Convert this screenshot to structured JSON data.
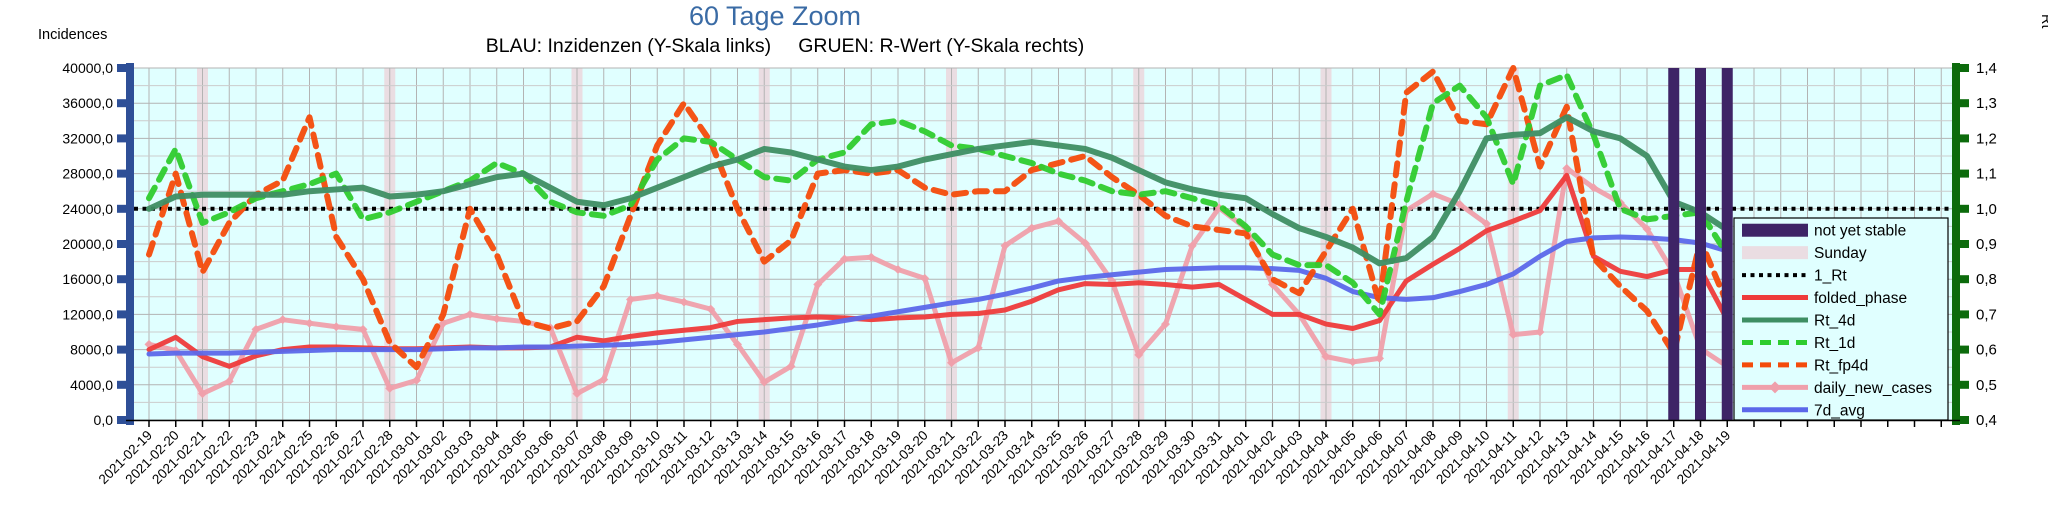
{
  "title": "60 Tage Zoom",
  "subtitle": "BLAU: Inzidenzen (Y-Skala links)     GRUEN: R-Wert (Y-Skala rechts)",
  "left_axis": {
    "label": "Incidences",
    "min": 0,
    "max": 40000,
    "major_step": 4000,
    "minor_step": 2000,
    "tick_labels": [
      "40000,0",
      "36000,0",
      "32000,0",
      "28000,0",
      "24000,0",
      "20000,0",
      "16000,0",
      "12000,0",
      "8000,0",
      "4000,0",
      "0,0"
    ],
    "color": "#2e4f97"
  },
  "right_axis": {
    "label": "Rt",
    "min": 0.4,
    "max": 1.4,
    "major_step": 0.1,
    "tick_labels": [
      "1,4",
      "1,3",
      "1,2",
      "1,1",
      "1,0",
      "0,9",
      "0,8",
      "0,7",
      "0,6",
      "0,5",
      "0,4"
    ],
    "color": "#0c6b0c"
  },
  "colors": {
    "title": "#3a6ba5",
    "subtitle": "#000000",
    "plot_bg": "#e0ffff",
    "grid_major": "#b3b3b3",
    "grid_minor": "#cccccc",
    "axis_line": "#000000",
    "sunday_band": "#eadde2",
    "stable_band": "#3e2466",
    "rt1": "#000000",
    "folded_phase": "#ee3b3b",
    "rt_4d": "#3e8e63",
    "rt_1d": "#2ecc2e",
    "rt_fp4d": "#f44b0b",
    "daily_new_cases": "#efa0ab",
    "7d_avg": "#5b68ea"
  },
  "legend": {
    "position": "right-bottom",
    "items": [
      {
        "key": "stable",
        "label": "not yet stable",
        "swatch": "band",
        "color": "#3e2466"
      },
      {
        "key": "sunday",
        "label": "Sunday",
        "swatch": "band",
        "color": "#eadde2"
      },
      {
        "key": "rt1",
        "label": "1_Rt",
        "swatch": "dotted",
        "color": "#000000"
      },
      {
        "key": "folded_phase",
        "label": "folded_phase",
        "swatch": "solid",
        "color": "#ee3b3b"
      },
      {
        "key": "rt_4d",
        "label": "Rt_4d",
        "swatch": "solid",
        "color": "#3e8e63"
      },
      {
        "key": "rt_1d",
        "label": "Rt_1d",
        "swatch": "dashed",
        "color": "#2ecc2e"
      },
      {
        "key": "rt_fp4d",
        "label": "Rt_fp4d",
        "swatch": "dashed",
        "color": "#f44b0b"
      },
      {
        "key": "daily_new_cases",
        "label": "daily_new_cases",
        "swatch": "solid-diamond",
        "color": "#efa0ab"
      },
      {
        "key": "7d_avg",
        "label": "7d_avg",
        "swatch": "solid",
        "color": "#5b68ea"
      }
    ]
  },
  "chart_data": {
    "type": "line",
    "grid": true,
    "x": [
      "2021-02-19",
      "2021-02-20",
      "2021-02-21",
      "2021-02-22",
      "2021-02-23",
      "2021-02-24",
      "2021-02-25",
      "2021-02-26",
      "2021-02-27",
      "2021-02-28",
      "2021-03-01",
      "2021-03-02",
      "2021-03-03",
      "2021-03-04",
      "2021-03-05",
      "2021-03-06",
      "2021-03-07",
      "2021-03-08",
      "2021-03-09",
      "2021-03-10",
      "2021-03-11",
      "2021-03-12",
      "2021-03-13",
      "2021-03-14",
      "2021-03-15",
      "2021-03-16",
      "2021-03-17",
      "2021-03-18",
      "2021-03-19",
      "2021-03-20",
      "2021-03-21",
      "2021-03-22",
      "2021-03-23",
      "2021-03-24",
      "2021-03-25",
      "2021-03-26",
      "2021-03-27",
      "2021-03-28",
      "2021-03-29",
      "2021-03-30",
      "2021-03-31",
      "2021-04-01",
      "2021-04-02",
      "2021-04-03",
      "2021-04-04",
      "2021-04-05",
      "2021-04-06",
      "2021-04-07",
      "2021-04-08",
      "2021-04-09",
      "2021-04-10",
      "2021-04-11",
      "2021-04-12",
      "2021-04-13",
      "2021-04-14",
      "2021-04-15",
      "2021-04-16",
      "2021-04-17",
      "2021-04-18",
      "2021-04-19"
    ],
    "sunday_band_indices": [
      2,
      9,
      16,
      23,
      30,
      37,
      44,
      51,
      58
    ],
    "not_yet_stable_indices": [
      57,
      58,
      59
    ],
    "reference_line": {
      "name": "1_Rt",
      "axis": "right",
      "value": 1.0
    },
    "extra_unlabeled_ticks": 8,
    "series": [
      {
        "name": "daily_new_cases",
        "axis": "left",
        "style": "solid",
        "marker": "diamond",
        "width": 5,
        "values": [
          8600,
          7900,
          3000,
          4400,
          10300,
          11400,
          11000,
          10600,
          10300,
          3600,
          4500,
          11000,
          12000,
          11500,
          11200,
          10500,
          3000,
          4600,
          13700,
          14100,
          13400,
          12600,
          8600,
          4300,
          6100,
          15400,
          18300,
          18500,
          17100,
          16100,
          6500,
          8200,
          19800,
          21800,
          22600,
          20100,
          15800,
          7400,
          10900,
          19800,
          24100,
          21800,
          15400,
          12000,
          7200,
          6600,
          7000,
          23800,
          25700,
          24500,
          22300,
          9700,
          10000,
          28600,
          26400,
          24700,
          21700,
          16700,
          8100,
          6100
        ]
      },
      {
        "name": "folded_phase",
        "axis": "left",
        "style": "solid",
        "marker": "none",
        "width": 5,
        "values": [
          8000,
          9400,
          7200,
          6100,
          7300,
          8000,
          8300,
          8300,
          8200,
          8100,
          8100,
          8200,
          8300,
          8200,
          8200,
          8300,
          9400,
          9000,
          9500,
          9900,
          10200,
          10500,
          11200,
          11400,
          11600,
          11700,
          11600,
          11400,
          11600,
          11700,
          12000,
          12100,
          12500,
          13500,
          14800,
          15500,
          15400,
          15600,
          15400,
          15100,
          15400,
          13700,
          12000,
          12000,
          10900,
          10400,
          11300,
          15800,
          17700,
          19500,
          21500,
          22600,
          23800,
          27800,
          18600,
          16900,
          16300,
          17100,
          17100,
          11400
        ]
      },
      {
        "name": "7d_avg",
        "axis": "left",
        "style": "solid",
        "marker": "none",
        "width": 5,
        "values": [
          7500,
          7600,
          7600,
          7600,
          7700,
          7800,
          7900,
          8000,
          8000,
          8000,
          8000,
          8100,
          8200,
          8200,
          8300,
          8300,
          8400,
          8500,
          8600,
          8800,
          9100,
          9400,
          9700,
          10000,
          10400,
          10800,
          11300,
          11800,
          12300,
          12800,
          13300,
          13700,
          14300,
          15000,
          15800,
          16200,
          16500,
          16800,
          17100,
          17200,
          17300,
          17300,
          17200,
          17000,
          16100,
          14600,
          13900,
          13700,
          13900,
          14600,
          15400,
          16600,
          18600,
          20300,
          20700,
          20800,
          20700,
          20500,
          20100,
          19200
        ]
      },
      {
        "name": "Rt_fp4d",
        "axis": "right",
        "style": "dashed",
        "marker": "none",
        "width": 6,
        "values": [
          0.87,
          1.1,
          0.82,
          0.96,
          1.04,
          1.08,
          1.26,
          0.92,
          0.8,
          0.62,
          0.55,
          0.7,
          1.0,
          0.87,
          0.68,
          0.66,
          0.68,
          0.78,
          0.98,
          1.18,
          1.3,
          1.19,
          1.0,
          0.85,
          0.91,
          1.1,
          1.11,
          1.1,
          1.11,
          1.06,
          1.04,
          1.05,
          1.05,
          1.11,
          1.13,
          1.15,
          1.09,
          1.04,
          0.98,
          0.95,
          0.94,
          0.93,
          0.8,
          0.76,
          0.88,
          1.0,
          0.73,
          1.33,
          1.39,
          1.25,
          1.24,
          1.4,
          1.12,
          1.29,
          0.86,
          0.78,
          0.71,
          0.59,
          0.91,
          0.73
        ]
      },
      {
        "name": "Rt_1d",
        "axis": "right",
        "style": "dashed",
        "marker": "none",
        "width": 6,
        "values": [
          1.03,
          1.17,
          0.96,
          0.99,
          1.03,
          1.05,
          1.07,
          1.1,
          0.97,
          0.99,
          1.02,
          1.05,
          1.08,
          1.13,
          1.1,
          1.02,
          0.99,
          0.98,
          1.01,
          1.14,
          1.2,
          1.19,
          1.14,
          1.09,
          1.08,
          1.14,
          1.16,
          1.24,
          1.25,
          1.22,
          1.18,
          1.17,
          1.15,
          1.13,
          1.1,
          1.08,
          1.05,
          1.04,
          1.05,
          1.03,
          1.01,
          0.95,
          0.87,
          0.84,
          0.84,
          0.79,
          0.7,
          1.02,
          1.3,
          1.35,
          1.26,
          1.07,
          1.35,
          1.38,
          1.21,
          1.0,
          0.97,
          0.98,
          0.99,
          0.87
        ]
      },
      {
        "name": "Rt_4d",
        "axis": "right",
        "style": "solid",
        "marker": "none",
        "width": 6,
        "values": [
          1.0,
          1.035,
          1.04,
          1.04,
          1.04,
          1.04,
          1.05,
          1.055,
          1.06,
          1.035,
          1.04,
          1.05,
          1.07,
          1.09,
          1.1,
          1.06,
          1.02,
          1.01,
          1.03,
          1.06,
          1.09,
          1.12,
          1.14,
          1.17,
          1.16,
          1.14,
          1.12,
          1.11,
          1.12,
          1.14,
          1.155,
          1.17,
          1.18,
          1.19,
          1.18,
          1.17,
          1.145,
          1.11,
          1.075,
          1.055,
          1.04,
          1.03,
          0.985,
          0.945,
          0.92,
          0.89,
          0.845,
          0.86,
          0.92,
          1.05,
          1.2,
          1.21,
          1.215,
          1.26,
          1.22,
          1.2,
          1.15,
          1.02,
          0.99,
          0.94
        ]
      }
    ]
  }
}
